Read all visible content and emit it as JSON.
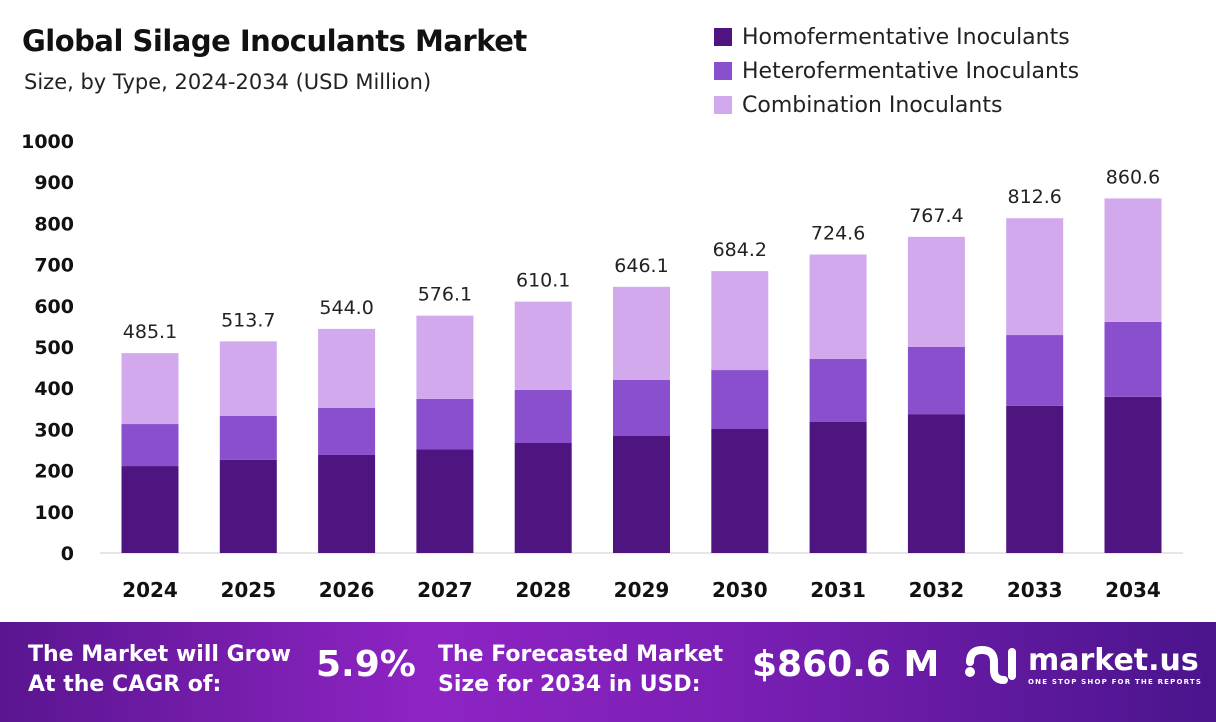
{
  "chart_data": {
    "type": "bar",
    "stacked": true,
    "title": "Global Silage Inoculants Market",
    "subtitle": "Size, by Type, 2024-2034 (USD Million)",
    "categories": [
      "2024",
      "2025",
      "2026",
      "2027",
      "2028",
      "2029",
      "2030",
      "2031",
      "2032",
      "2033",
      "2034"
    ],
    "series": [
      {
        "name": "Homofermentative Inoculants",
        "color": "#4e1580",
        "values": [
          211,
          226,
          238,
          252,
          267,
          284,
          301,
          318,
          337,
          357,
          379
        ]
      },
      {
        "name": "Heterofermentative Inoculants",
        "color": "#8a4fcc",
        "values": [
          102,
          107,
          114,
          122,
          129,
          136,
          143,
          153,
          163,
          172,
          182
        ]
      },
      {
        "name": "Combination Inoculants",
        "color": "#d3a9ee",
        "values": [
          172.1,
          180.7,
          192.0,
          202.1,
          214.1,
          226.1,
          240.2,
          253.6,
          267.4,
          283.6,
          299.6
        ]
      }
    ],
    "totals": [
      "485.1",
      "513.7",
      "544.0",
      "576.1",
      "610.1",
      "646.1",
      "684.2",
      "724.6",
      "767.4",
      "812.6",
      "860.6"
    ],
    "yticks": [
      "0",
      "100",
      "200",
      "300",
      "400",
      "500",
      "600",
      "700",
      "800",
      "900",
      "1000"
    ],
    "ylim": [
      0,
      1000
    ],
    "grid": false,
    "legend_position": "top-right"
  },
  "footer": {
    "cagr_label_1": "The Market will Grow",
    "cagr_label_2": "At the CAGR of:",
    "cagr_value": "5.9%",
    "forecast_label_1": "The Forecasted Market",
    "forecast_label_2": "Size for 2034 in USD:",
    "forecast_value": "$860.6 M",
    "logo_name": "market.us",
    "logo_tagline": "ONE STOP SHOP FOR THE REPORTS"
  }
}
